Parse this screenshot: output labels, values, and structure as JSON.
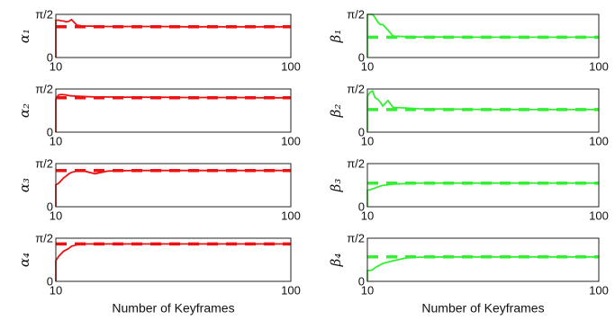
{
  "chart_data": [
    {
      "type": "line",
      "ylabel": "α₁",
      "x": [
        10,
        10,
        11,
        12,
        13,
        14,
        15,
        16,
        18,
        20,
        25,
        30,
        40,
        50,
        60,
        70,
        80,
        90,
        100
      ],
      "xlim": [
        10,
        100
      ],
      "xticks": [
        10,
        100
      ],
      "ylim": [
        0,
        1.5708
      ],
      "yticks": [
        0,
        {
          "value": 1.5708,
          "label": "π/2"
        }
      ],
      "series": [
        {
          "color": "#ee1111",
          "style": "solid",
          "values": [
            0,
            1.35,
            1.36,
            1.34,
            1.33,
            1.3,
            1.32,
            1.38,
            1.18,
            1.15,
            1.14,
            1.13,
            1.13,
            1.13,
            1.12,
            1.12,
            1.12,
            1.12,
            1.12
          ]
        },
        {
          "color": "#ee1111",
          "style": "dashed",
          "values": [
            1.12,
            1.12,
            1.12,
            1.12,
            1.12,
            1.12,
            1.12,
            1.12,
            1.12,
            1.12,
            1.12,
            1.12,
            1.12,
            1.12,
            1.12,
            1.12,
            1.12,
            1.12,
            1.12
          ]
        }
      ]
    },
    {
      "type": "line",
      "ylabel": "α₂",
      "x": [
        10,
        10,
        11,
        12,
        13,
        14,
        15,
        16,
        18,
        20,
        25,
        30,
        40,
        50,
        60,
        70,
        80,
        90,
        100
      ],
      "xlim": [
        10,
        100
      ],
      "xticks": [
        10,
        100
      ],
      "ylim": [
        0,
        1.5708
      ],
      "yticks": [
        0,
        {
          "value": 1.5708,
          "label": "π/2"
        }
      ],
      "series": [
        {
          "color": "#ee1111",
          "style": "solid",
          "values": [
            0,
            1.2,
            1.35,
            1.37,
            1.36,
            1.35,
            1.33,
            1.32,
            1.31,
            1.3,
            1.28,
            1.28,
            1.27,
            1.27,
            1.26,
            1.26,
            1.26,
            1.25,
            1.25
          ]
        },
        {
          "color": "#ee1111",
          "style": "dashed",
          "values": [
            1.25,
            1.25,
            1.25,
            1.25,
            1.25,
            1.25,
            1.25,
            1.25,
            1.25,
            1.25,
            1.25,
            1.25,
            1.25,
            1.25,
            1.25,
            1.25,
            1.25,
            1.25,
            1.25
          ]
        }
      ]
    },
    {
      "type": "line",
      "ylabel": "α₃",
      "x": [
        10,
        10,
        11,
        12,
        13,
        14,
        15,
        16,
        18,
        20,
        25,
        30,
        40,
        50,
        60,
        70,
        80,
        90,
        100
      ],
      "xlim": [
        10,
        100
      ],
      "xticks": [
        10,
        100
      ],
      "ylim": [
        0,
        1.5708
      ],
      "yticks": [
        0,
        {
          "value": 1.5708,
          "label": "π/2"
        }
      ],
      "series": [
        {
          "color": "#ee1111",
          "style": "solid",
          "values": [
            0,
            0.8,
            0.85,
            0.95,
            1.05,
            1.12,
            1.2,
            1.25,
            1.3,
            1.32,
            1.2,
            1.3,
            1.32,
            1.32,
            1.32,
            1.32,
            1.32,
            1.32,
            1.32
          ]
        },
        {
          "color": "#ee1111",
          "style": "dashed",
          "values": [
            1.32,
            1.32,
            1.32,
            1.32,
            1.32,
            1.32,
            1.32,
            1.32,
            1.32,
            1.32,
            1.32,
            1.32,
            1.32,
            1.32,
            1.32,
            1.32,
            1.32,
            1.32,
            1.32
          ]
        }
      ]
    },
    {
      "type": "line",
      "ylabel": "α₄",
      "xlabel": "Number of Keyframes",
      "x": [
        10,
        10,
        11,
        12,
        13,
        14,
        15,
        16,
        18,
        20,
        25,
        30,
        40,
        50,
        60,
        70,
        80,
        90,
        100
      ],
      "xlim": [
        10,
        100
      ],
      "xticks": [
        10,
        100
      ],
      "ylim": [
        0,
        1.5708
      ],
      "yticks": [
        0,
        {
          "value": 1.5708,
          "label": "π/2"
        }
      ],
      "series": [
        {
          "color": "#ee1111",
          "style": "solid",
          "values": [
            0,
            0.75,
            0.9,
            1.0,
            1.1,
            1.15,
            1.2,
            1.28,
            1.33,
            1.36,
            1.36,
            1.36,
            1.36,
            1.36,
            1.36,
            1.36,
            1.36,
            1.36,
            1.36
          ]
        },
        {
          "color": "#ee1111",
          "style": "dashed",
          "values": [
            1.36,
            1.36,
            1.36,
            1.36,
            1.36,
            1.36,
            1.36,
            1.36,
            1.36,
            1.36,
            1.36,
            1.36,
            1.36,
            1.36,
            1.36,
            1.36,
            1.36,
            1.36,
            1.36
          ]
        }
      ]
    },
    {
      "type": "line",
      "ylabel": "β₁",
      "x": [
        10,
        10,
        11,
        12,
        13,
        14,
        15,
        16,
        18,
        20,
        25,
        30,
        40,
        50,
        60,
        70,
        80,
        90,
        100
      ],
      "xlim": [
        10,
        100
      ],
      "xticks": [
        10,
        100
      ],
      "ylim": [
        0,
        1.5708
      ],
      "yticks": [
        0,
        {
          "value": 1.5708,
          "label": "π/2"
        }
      ],
      "series": [
        {
          "color": "#33ee33",
          "style": "solid",
          "values": [
            0,
            1.57,
            1.57,
            1.57,
            1.45,
            1.3,
            1.2,
            1.2,
            1.0,
            0.78,
            0.76,
            0.75,
            0.75,
            0.74,
            0.74,
            0.74,
            0.74,
            0.74,
            0.74
          ]
        },
        {
          "color": "#33ee33",
          "style": "dashed",
          "values": [
            0.74,
            0.74,
            0.74,
            0.74,
            0.74,
            0.74,
            0.74,
            0.74,
            0.74,
            0.74,
            0.74,
            0.74,
            0.74,
            0.74,
            0.74,
            0.74,
            0.74,
            0.74,
            0.74
          ]
        }
      ]
    },
    {
      "type": "line",
      "ylabel": "β₂",
      "x": [
        10,
        10,
        11,
        12,
        13,
        14,
        15,
        16,
        18,
        20,
        25,
        30,
        40,
        50,
        60,
        70,
        80,
        90,
        100
      ],
      "xlim": [
        10,
        100
      ],
      "xticks": [
        10,
        100
      ],
      "ylim": [
        0,
        1.5708
      ],
      "yticks": [
        0,
        {
          "value": 1.5708,
          "label": "π/2"
        }
      ],
      "series": [
        {
          "color": "#33ee33",
          "style": "solid",
          "values": [
            0,
            1.3,
            1.45,
            1.5,
            1.25,
            1.2,
            1.1,
            0.95,
            1.15,
            0.9,
            0.88,
            0.85,
            0.84,
            0.83,
            0.82,
            0.82,
            0.82,
            0.82,
            0.82
          ]
        },
        {
          "color": "#33ee33",
          "style": "dashed",
          "values": [
            0.82,
            0.82,
            0.82,
            0.82,
            0.82,
            0.82,
            0.82,
            0.82,
            0.82,
            0.82,
            0.82,
            0.82,
            0.82,
            0.82,
            0.82,
            0.82,
            0.82,
            0.82,
            0.82
          ]
        }
      ]
    },
    {
      "type": "line",
      "ylabel": "β₃",
      "x": [
        10,
        10,
        11,
        12,
        13,
        14,
        15,
        16,
        18,
        20,
        25,
        30,
        40,
        50,
        60,
        70,
        80,
        90,
        100
      ],
      "xlim": [
        10,
        100
      ],
      "xticks": [
        10,
        100
      ],
      "ylim": [
        0,
        1.5708
      ],
      "yticks": [
        0,
        {
          "value": 1.5708,
          "label": "π/2"
        }
      ],
      "series": [
        {
          "color": "#33ee33",
          "style": "solid",
          "values": [
            0,
            0.6,
            0.62,
            0.65,
            0.68,
            0.72,
            0.75,
            0.78,
            0.8,
            0.82,
            0.84,
            0.86,
            0.86,
            0.86,
            0.86,
            0.86,
            0.86,
            0.86,
            0.86
          ]
        },
        {
          "color": "#33ee33",
          "style": "dashed",
          "values": [
            0.86,
            0.86,
            0.86,
            0.86,
            0.86,
            0.86,
            0.86,
            0.86,
            0.86,
            0.86,
            0.86,
            0.86,
            0.86,
            0.86,
            0.86,
            0.86,
            0.86,
            0.86,
            0.86
          ]
        }
      ]
    },
    {
      "type": "line",
      "ylabel": "β₄",
      "xlabel": "Number of Keyframes",
      "x": [
        10,
        10,
        11,
        12,
        13,
        14,
        15,
        16,
        18,
        20,
        25,
        30,
        40,
        50,
        60,
        70,
        80,
        90,
        100
      ],
      "xlim": [
        10,
        100
      ],
      "xticks": [
        10,
        100
      ],
      "ylim": [
        0,
        1.5708
      ],
      "yticks": [
        0,
        {
          "value": 1.5708,
          "label": "π/2"
        }
      ],
      "series": [
        {
          "color": "#33ee33",
          "style": "solid",
          "values": [
            0,
            0.39,
            0.4,
            0.42,
            0.5,
            0.55,
            0.6,
            0.65,
            0.7,
            0.75,
            0.85,
            0.88,
            0.89,
            0.89,
            0.89,
            0.89,
            0.89,
            0.89,
            0.89
          ]
        },
        {
          "color": "#33ee33",
          "style": "dashed",
          "values": [
            0.89,
            0.89,
            0.89,
            0.89,
            0.89,
            0.89,
            0.89,
            0.89,
            0.89,
            0.89,
            0.89,
            0.89,
            0.89,
            0.89,
            0.89,
            0.89,
            0.89,
            0.89,
            0.89
          ]
        }
      ]
    }
  ]
}
